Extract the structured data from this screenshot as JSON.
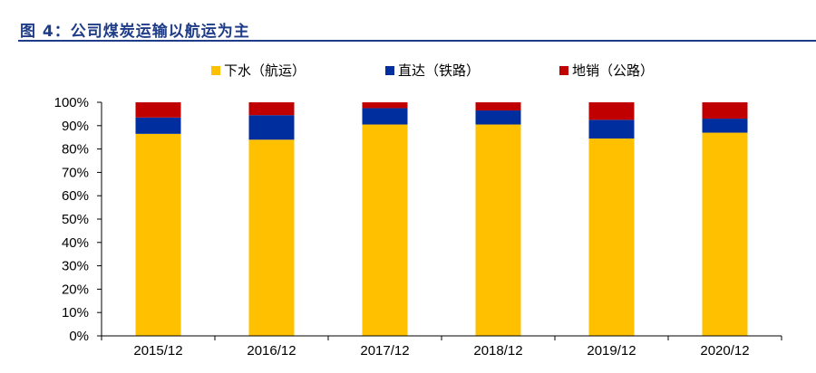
{
  "figure": {
    "label": "图 4：公司煤炭运输以航运为主"
  },
  "chart_data": {
    "type": "bar",
    "stacked": true,
    "categories": [
      "2015/12",
      "2016/12",
      "2017/12",
      "2018/12",
      "2019/12",
      "2020/12"
    ],
    "series": [
      {
        "name": "下水（航运）",
        "color": "#FFC000",
        "values": [
          86.5,
          84,
          90.5,
          90.5,
          84.5,
          87
        ]
      },
      {
        "name": "直达（铁路）",
        "color": "#002E9E",
        "values": [
          7,
          10.5,
          7,
          6,
          8,
          6
        ]
      },
      {
        "name": "地销（公路）",
        "color": "#C00000",
        "values": [
          6.5,
          5.5,
          2.5,
          3.5,
          7.5,
          7
        ]
      }
    ],
    "yticks": [
      "0%",
      "10%",
      "20%",
      "30%",
      "40%",
      "50%",
      "60%",
      "70%",
      "80%",
      "90%",
      "100%"
    ],
    "ylim": [
      0,
      100
    ],
    "legend_position": "top-center",
    "grid": false
  }
}
